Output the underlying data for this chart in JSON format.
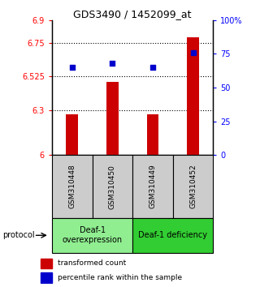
{
  "title": "GDS3490 / 1452099_at",
  "samples": [
    "GSM310448",
    "GSM310450",
    "GSM310449",
    "GSM310452"
  ],
  "transformed_counts": [
    6.27,
    6.485,
    6.27,
    6.785
  ],
  "percentile_ranks": [
    65,
    68,
    65,
    76
  ],
  "ylim_left": [
    6.0,
    6.9
  ],
  "ylim_right": [
    0,
    100
  ],
  "yticks_left": [
    6.0,
    6.3,
    6.525,
    6.75,
    6.9
  ],
  "ytick_labels_left": [
    "6",
    "6.3",
    "6.525",
    "6.75",
    "6.9"
  ],
  "yticks_right": [
    0,
    25,
    50,
    75,
    100
  ],
  "ytick_labels_right": [
    "0",
    "25",
    "50",
    "75",
    "100%"
  ],
  "hlines": [
    6.3,
    6.525,
    6.75
  ],
  "bar_color": "#cc0000",
  "dot_color": "#0000cc",
  "bar_width": 0.3,
  "group1_color": "#90EE90",
  "group2_color": "#32CD32",
  "bg_color": "#ffffff",
  "sample_box_color": "#cccccc"
}
